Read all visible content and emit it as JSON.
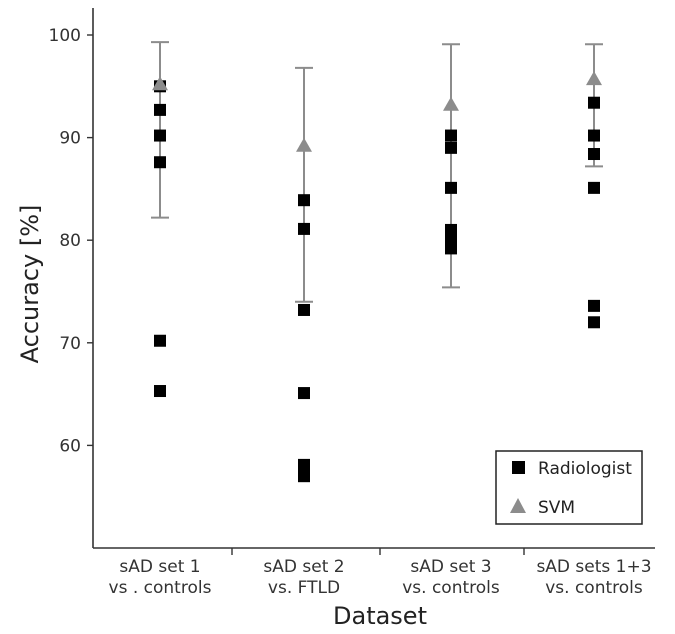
{
  "chart_data": {
    "type": "scatter",
    "title": "",
    "xlabel": "Dataset",
    "ylabel": "Accuracy [%]",
    "ylim": [
      50,
      103
    ],
    "yticks": [
      60,
      70,
      80,
      90,
      100
    ],
    "categories": [
      [
        "sAD set 1",
        "vs . controls"
      ],
      [
        "sAD set 2",
        "vs. FTLD"
      ],
      [
        "sAD set 3",
        "vs. controls"
      ],
      [
        "sAD sets 1+3",
        "vs. controls"
      ]
    ],
    "series": [
      {
        "name": "Radiologist",
        "marker": "square",
        "color": "#000000",
        "values": [
          [
            95.0,
            92.7,
            90.2,
            87.6,
            70.2,
            65.3
          ],
          [
            83.9,
            81.1,
            73.2,
            65.1,
            58.1,
            57.0
          ],
          [
            90.2,
            89.0,
            85.1,
            81.0,
            80.2,
            79.2
          ],
          [
            93.4,
            90.2,
            88.4,
            85.1,
            73.6,
            72.0
          ]
        ]
      },
      {
        "name": "SVM",
        "marker": "triangle",
        "color": "#8c8c8c",
        "values": [
          95.2,
          89.2,
          93.2,
          95.7
        ],
        "error_low": [
          82.2,
          74.0,
          75.4,
          87.2
        ],
        "error_high": [
          99.3,
          96.8,
          99.1,
          99.1
        ]
      }
    ],
    "grid": false,
    "legend_position": "bottom-right"
  }
}
